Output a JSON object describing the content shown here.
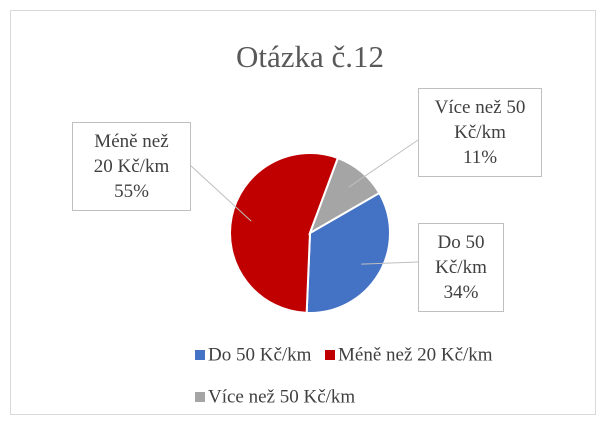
{
  "chart_data": {
    "type": "pie",
    "title": "Otázka č.12",
    "categories": [
      "Do 50 Kč/km",
      "Méně než 20 Kč/km",
      "Více než 50 Kč/km"
    ],
    "values": [
      34,
      55,
      11
    ],
    "value_labels": [
      "34%",
      "55%",
      "11%"
    ],
    "colors": [
      "#4472c4",
      "#c00000",
      "#a5a5a5"
    ],
    "legend": "bottom"
  }
}
